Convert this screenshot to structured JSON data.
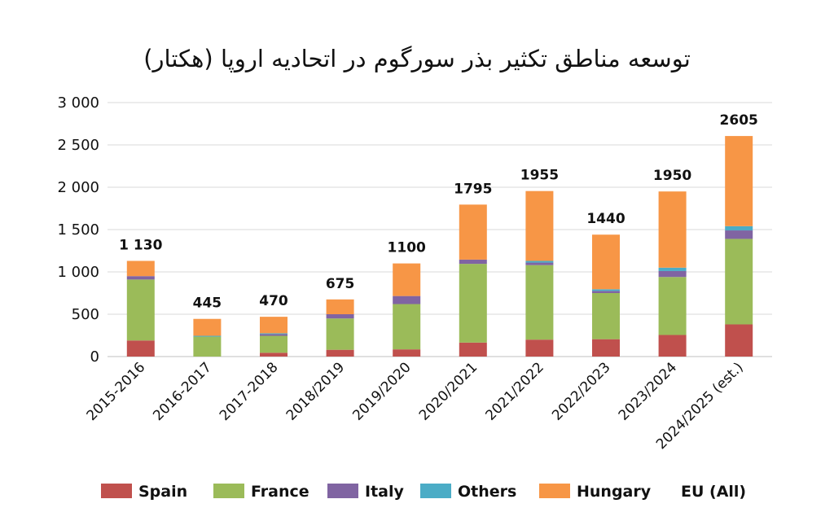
{
  "chart_data": {
    "type": "bar",
    "stacked": true,
    "title": "توسعه مناطق تکثیر بذر سورگوم در اتحادیه اروپا (هکتار)",
    "xlabel": "",
    "ylabel": "",
    "ylim": [
      0,
      3000
    ],
    "y_ticks": [
      {
        "value": 0,
        "label": "0"
      },
      {
        "value": 500,
        "label": "500"
      },
      {
        "value": 1000,
        "label": "1 000"
      },
      {
        "value": 1500,
        "label": "1 500"
      },
      {
        "value": 2000,
        "label": "2 000"
      },
      {
        "value": 2500,
        "label": "2 500"
      },
      {
        "value": 3000,
        "label": "3 000"
      }
    ],
    "grid": true,
    "legend_position": "bottom",
    "categories": [
      "2015-2016",
      "2016-2017",
      "2017-2018",
      "2018/2019",
      "2019/2020",
      "2020/2021",
      "2021/2022",
      "2022/2023",
      "2023/2024",
      "2024/2025 (est.)"
    ],
    "series": [
      {
        "name": "Spain",
        "color": "#c0504d",
        "values": [
          190,
          0,
          45,
          80,
          85,
          165,
          200,
          205,
          255,
          380
        ]
      },
      {
        "name": "France",
        "color": "#9bbb59",
        "values": [
          720,
          235,
          200,
          370,
          535,
          930,
          880,
          545,
          685,
          1010
        ]
      },
      {
        "name": "Italy",
        "color": "#8064a2",
        "values": [
          40,
          0,
          20,
          50,
          95,
          50,
          30,
          25,
          70,
          100
        ]
      },
      {
        "name": "Others",
        "color": "#4bacc6",
        "values": [
          0,
          10,
          10,
          0,
          0,
          0,
          20,
          20,
          40,
          50
        ]
      },
      {
        "name": "Hungary",
        "color": "#f79646",
        "values": [
          180,
          200,
          195,
          175,
          385,
          650,
          825,
          645,
          900,
          1065
        ]
      }
    ],
    "totals_series_name": "EU (All)",
    "totals": [
      1130,
      445,
      470,
      675,
      1100,
      1795,
      1955,
      1440,
      1950,
      2605
    ],
    "total_labels": [
      "1 130",
      "445",
      "470",
      "675",
      "1100",
      "1795",
      "1955",
      "1440",
      "1950",
      "2605"
    ]
  }
}
